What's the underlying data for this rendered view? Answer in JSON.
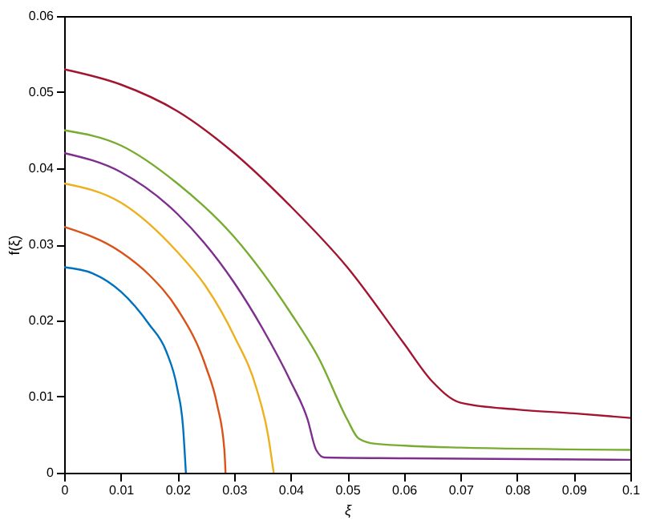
{
  "chart_data": {
    "type": "line",
    "xlabel": "ξ",
    "ylabel": "f(ξ)",
    "xlim": [
      0,
      0.1
    ],
    "xticks": [
      0,
      0.01,
      0.02,
      0.03,
      0.04,
      0.05,
      0.06,
      0.07,
      0.08,
      0.09,
      0.1
    ],
    "ylim": [
      0,
      0.06
    ],
    "yticks": [
      0,
      0.01,
      0.02,
      0.03,
      0.04,
      0.05,
      0.06
    ],
    "grid": false,
    "marker": "none",
    "line_style": "solid",
    "series": [
      {
        "color": "#0072bd",
        "x": [
          0,
          0.005,
          0.01,
          0.015,
          0.018,
          0.02,
          0.021,
          0.0215
        ],
        "values": [
          0.027,
          0.0262,
          0.0238,
          0.0195,
          0.016,
          0.011,
          0.006,
          0
        ]
      },
      {
        "color": "#d95319",
        "x": [
          0,
          0.01,
          0.015,
          0.02,
          0.025,
          0.027,
          0.0283,
          0.0285
        ],
        "values": [
          0.0323,
          0.029,
          0.026,
          0.0215,
          0.014,
          0.009,
          0.003,
          0
        ]
      },
      {
        "color": "#edb120",
        "x": [
          0,
          0.01,
          0.02,
          0.025,
          0.03,
          0.034,
          0.036,
          0.037
        ],
        "values": [
          0.038,
          0.0355,
          0.029,
          0.0245,
          0.018,
          0.011,
          0.005,
          0
        ]
      },
      {
        "color": "#7e2f8e",
        "x": [
          0,
          0.01,
          0.02,
          0.03,
          0.035,
          0.04,
          0.043,
          0.0445,
          0.046,
          0.06,
          0.1
        ],
        "values": [
          0.042,
          0.0395,
          0.034,
          0.025,
          0.019,
          0.012,
          0.007,
          0.003,
          0.002,
          0.0019,
          0.0017
        ]
      },
      {
        "color": "#77ac30",
        "x": [
          0,
          0.01,
          0.02,
          0.03,
          0.04,
          0.045,
          0.05,
          0.052,
          0.055,
          0.07,
          0.1
        ],
        "values": [
          0.045,
          0.043,
          0.038,
          0.031,
          0.021,
          0.015,
          0.007,
          0.0045,
          0.0038,
          0.0033,
          0.003
        ]
      },
      {
        "color": "#a2142f",
        "x": [
          0,
          0.01,
          0.02,
          0.03,
          0.04,
          0.05,
          0.06,
          0.065,
          0.07,
          0.08,
          0.09,
          0.1
        ],
        "values": [
          0.053,
          0.051,
          0.0475,
          0.042,
          0.035,
          0.027,
          0.017,
          0.012,
          0.0092,
          0.0083,
          0.0078,
          0.0072
        ]
      }
    ]
  }
}
